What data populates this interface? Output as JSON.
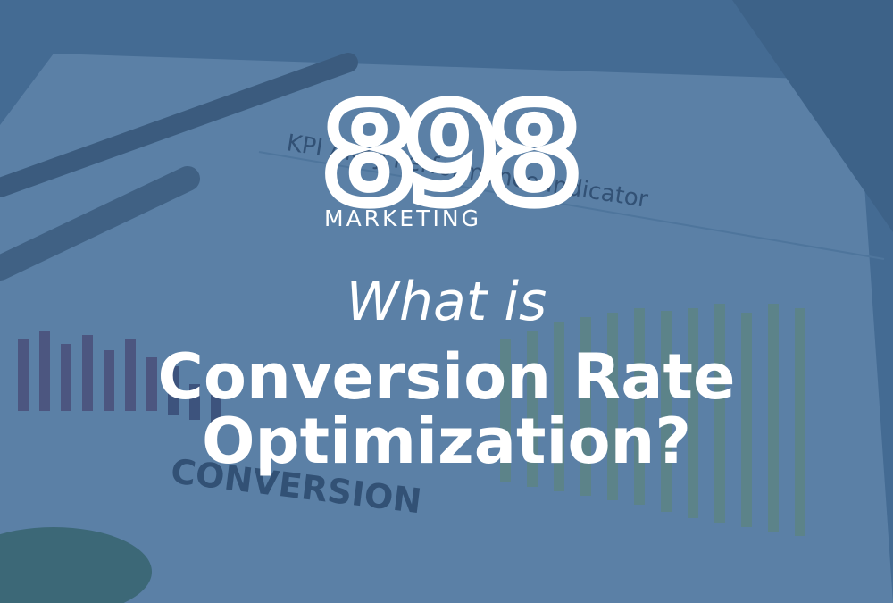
{
  "logo": {
    "mark": "898",
    "wordmark": "MARKETING"
  },
  "heading": {
    "kicker": "What is",
    "lines": [
      "Conversion Rate",
      "Optimization?"
    ]
  },
  "background": {
    "document_title": "KPI / Key Performance Indicator",
    "chart_caption": "CONVERSION"
  }
}
